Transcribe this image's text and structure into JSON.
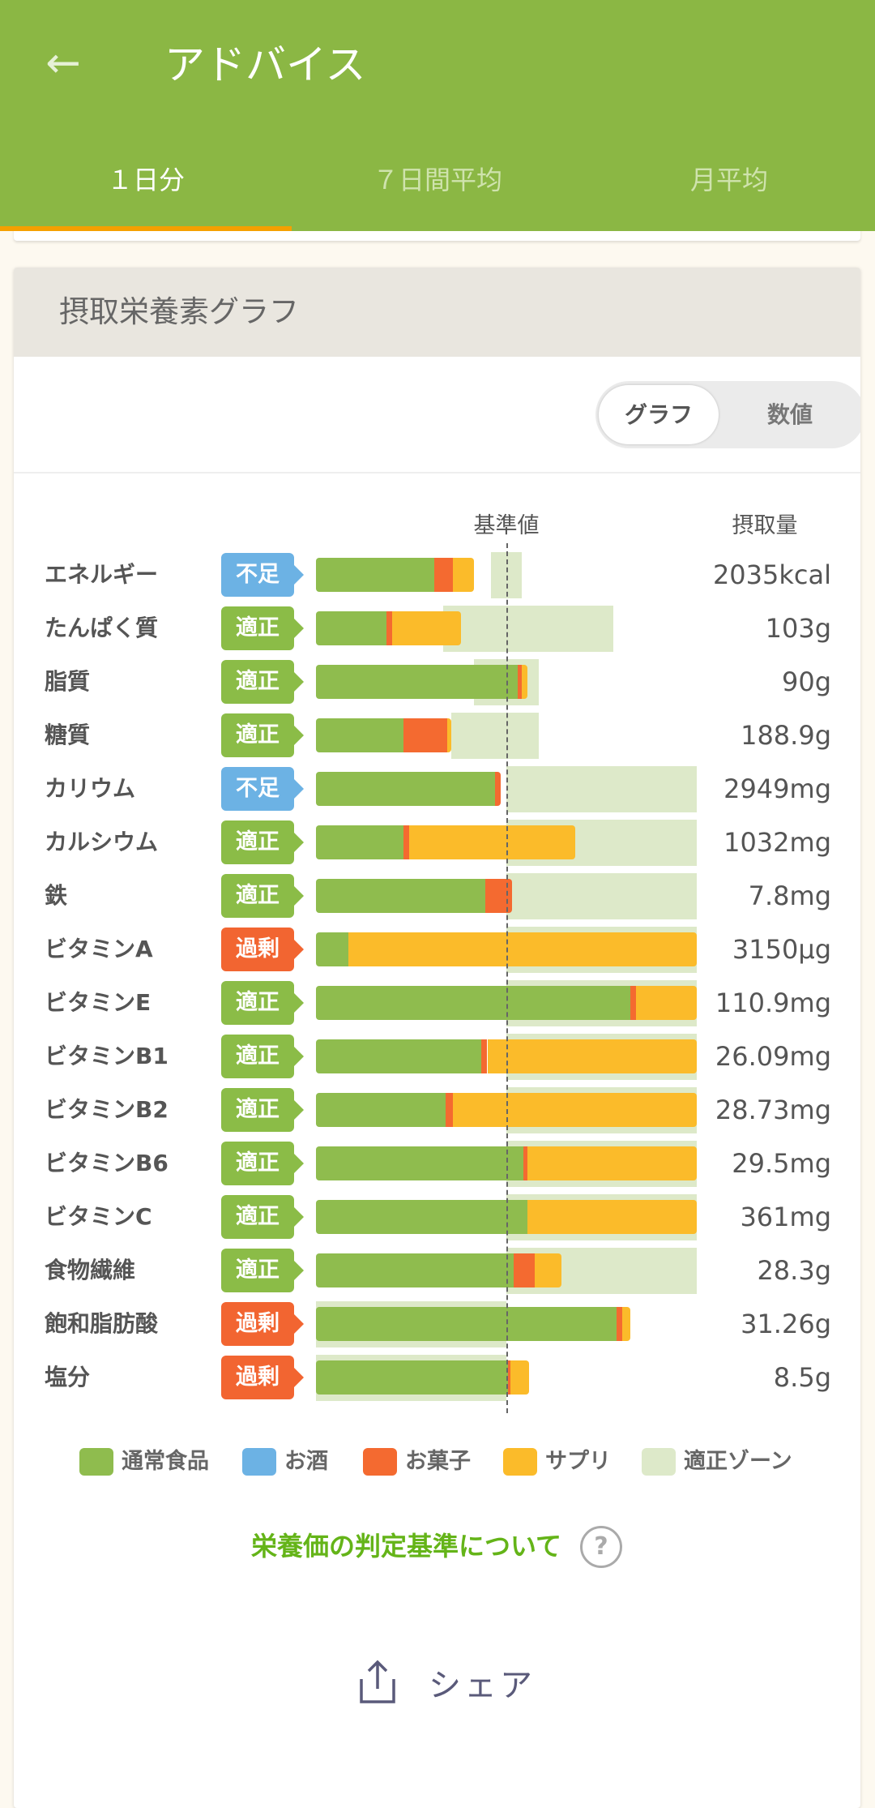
{
  "appbar": {
    "title": "アドバイス",
    "back_icon": "arrow-left-icon"
  },
  "tabs": [
    {
      "label": "１日分",
      "active": true
    },
    {
      "label": "７日間平均",
      "active": false
    },
    {
      "label": "月平均",
      "active": false
    }
  ],
  "card": {
    "title": "摂取栄養素グラフ",
    "toggle": {
      "graph": "グラフ",
      "numeric": "数値",
      "selected": "グラフ"
    }
  },
  "chart_data": {
    "type": "bar",
    "stacked": true,
    "orientation": "horizontal",
    "unit": "% of reference value (基準値 = 100)",
    "reference_label": "基準値",
    "value_header": "摂取量",
    "xlim": [
      0,
      200
    ],
    "series_names": [
      "通常食品",
      "お酒",
      "お菓子",
      "サプリ"
    ],
    "colors": {
      "通常食品": "#8fbc4e",
      "お酒": "#6cb2e4",
      "お菓子": "#f46a30",
      "サプリ": "#fbbb2a",
      "適正ゾーン": "#dde9c9"
    },
    "status_colors": {
      "不足": "#6cb2e4",
      "適正": "#8bbc47",
      "過剰": "#f26531"
    },
    "rows": [
      {
        "name": "エネルギー",
        "status": "不足",
        "value": "2035kcal",
        "food": 62,
        "alcohol": 0,
        "snack": 10,
        "supplement": 11,
        "zone": [
          92,
          108
        ]
      },
      {
        "name": "たんぱく質",
        "status": "適正",
        "value": "103g",
        "food": 37,
        "alcohol": 0,
        "snack": 3,
        "supplement": 36,
        "zone": [
          67,
          156
        ]
      },
      {
        "name": "脂質",
        "status": "適正",
        "value": "90g",
        "food": 106,
        "alcohol": 0,
        "snack": 2,
        "supplement": 3,
        "zone": [
          83,
          117
        ]
      },
      {
        "name": "糖質",
        "status": "適正",
        "value": "188.9g",
        "food": 46,
        "alcohol": 0,
        "snack": 23,
        "supplement": 2,
        "zone": [
          71,
          117
        ]
      },
      {
        "name": "カリウム",
        "status": "不足",
        "value": "2949mg",
        "food": 94,
        "alcohol": 0,
        "snack": 3,
        "supplement": 0,
        "zone": [
          100,
          200
        ]
      },
      {
        "name": "カルシウム",
        "status": "適正",
        "value": "1032mg",
        "food": 46,
        "alcohol": 0,
        "snack": 3,
        "supplement": 87,
        "zone": [
          100,
          200
        ]
      },
      {
        "name": "鉄",
        "status": "適正",
        "value": "7.8mg",
        "food": 89,
        "alcohol": 0,
        "snack": 14,
        "supplement": 0,
        "zone": [
          100,
          200
        ]
      },
      {
        "name": "ビタミンA",
        "status": "過剰",
        "value": "3150µg",
        "food": 17,
        "alcohol": 0,
        "snack": 0,
        "supplement": 183,
        "zone": [
          100,
          200
        ]
      },
      {
        "name": "ビタミンE",
        "status": "適正",
        "value": "110.9mg",
        "food": 165,
        "alcohol": 0,
        "snack": 3,
        "supplement": 32,
        "zone": [
          100,
          200
        ]
      },
      {
        "name": "ビタミンB1",
        "status": "適正",
        "value": "26.09mg",
        "food": 87,
        "alcohol": 0,
        "snack": 3,
        "supplement": 110,
        "zone": [
          100,
          200
        ]
      },
      {
        "name": "ビタミンB2",
        "status": "適正",
        "value": "28.73mg",
        "food": 68,
        "alcohol": 0,
        "snack": 4,
        "supplement": 128,
        "zone": [
          100,
          200
        ]
      },
      {
        "name": "ビタミンB6",
        "status": "適正",
        "value": "29.5mg",
        "food": 109,
        "alcohol": 0,
        "snack": 2,
        "supplement": 89,
        "zone": [
          100,
          200
        ]
      },
      {
        "name": "ビタミンC",
        "status": "適正",
        "value": "361mg",
        "food": 111,
        "alcohol": 0,
        "snack": 0,
        "supplement": 89,
        "zone": [
          100,
          200
        ]
      },
      {
        "name": "食物繊維",
        "status": "適正",
        "value": "28.3g",
        "food": 104,
        "alcohol": 0,
        "snack": 11,
        "supplement": 14,
        "zone": [
          100,
          200
        ]
      },
      {
        "name": "飽和脂肪酸",
        "status": "過剰",
        "value": "31.26g",
        "food": 158,
        "alcohol": 0,
        "snack": 3,
        "supplement": 4,
        "zone": [
          0,
          100
        ]
      },
      {
        "name": "塩分",
        "status": "過剰",
        "value": "8.5g",
        "food": 101,
        "alcohol": 0,
        "snack": 1,
        "supplement": 10,
        "zone": [
          0,
          100
        ]
      }
    ],
    "legend": [
      "通常食品",
      "お酒",
      "お菓子",
      "サプリ",
      "適正ゾーン"
    ]
  },
  "footer": {
    "criteria_link": "栄養価の判定基準について",
    "help_icon": "question-circle-icon",
    "share_label": "シェア",
    "share_icon": "share-icon"
  }
}
